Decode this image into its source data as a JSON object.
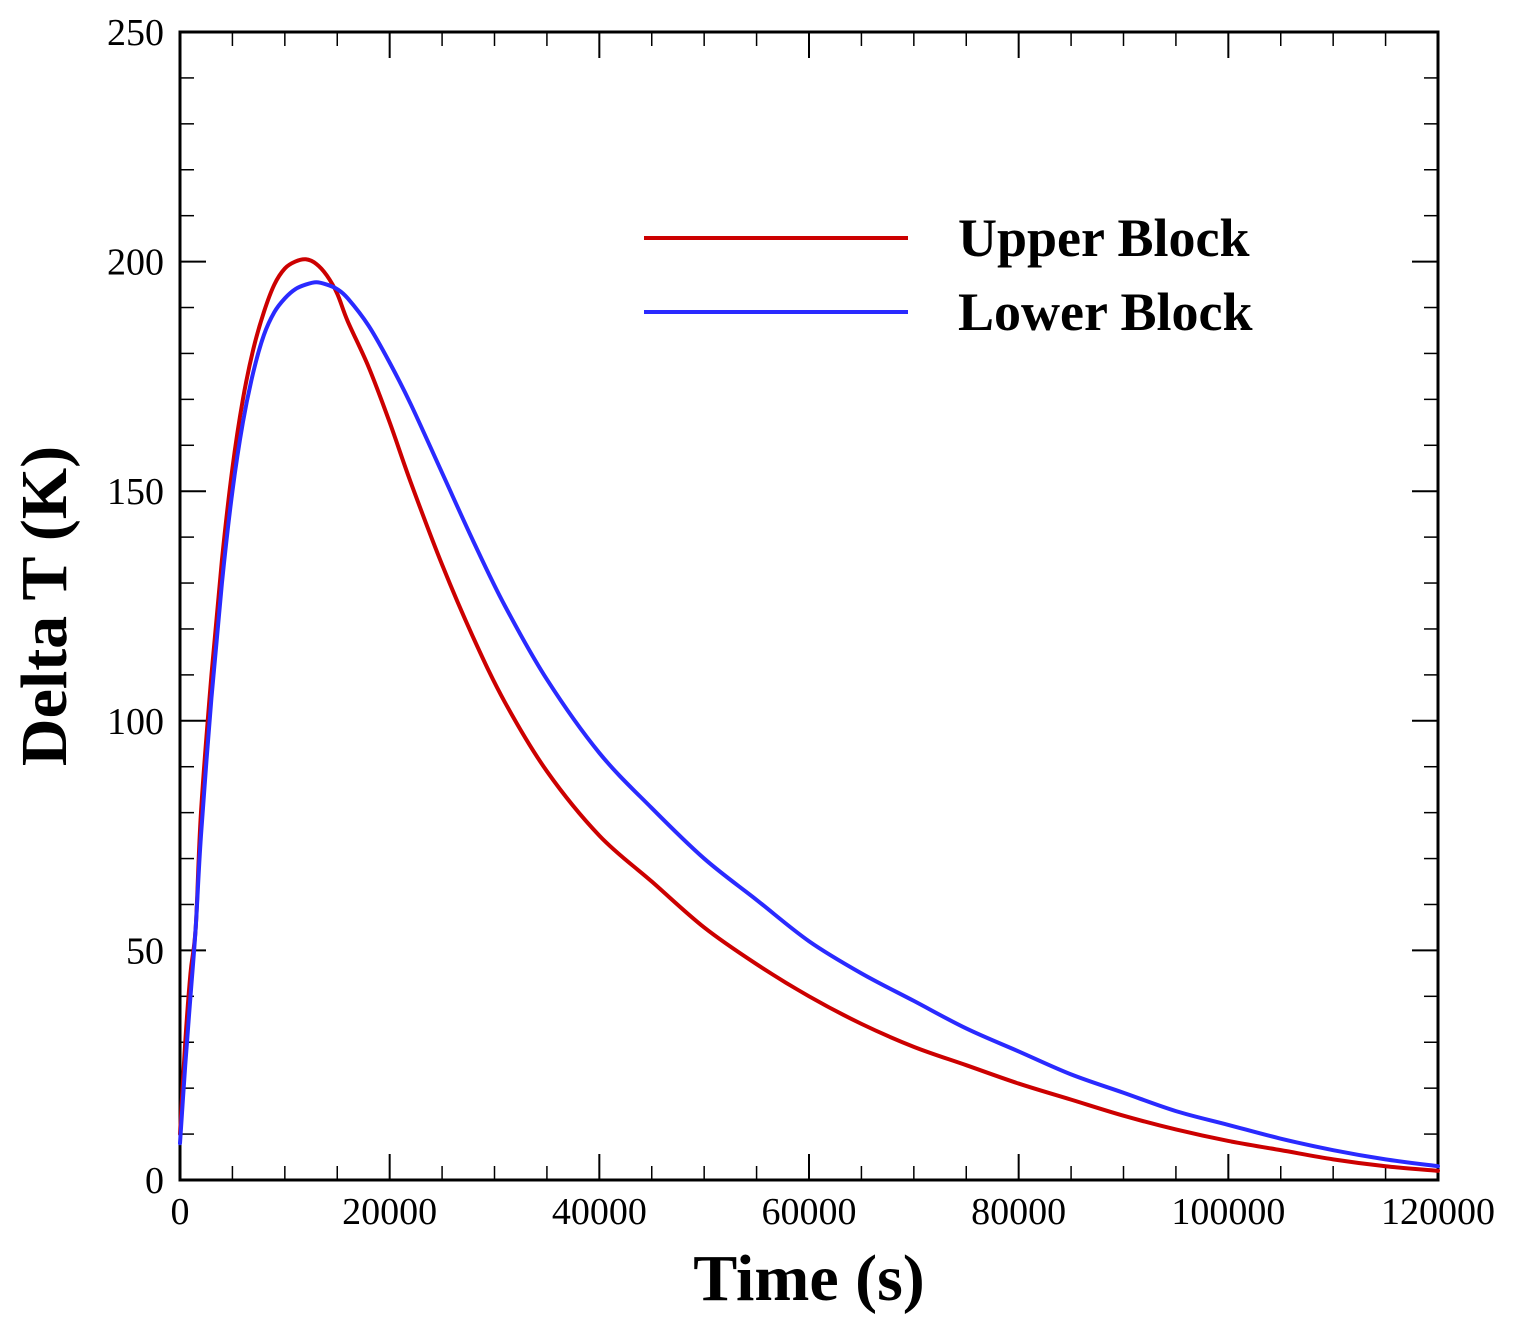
{
  "chart_data": {
    "type": "line",
    "title": "",
    "xlabel": "Time (s)",
    "ylabel": "Delta T (K)",
    "xlim": [
      0,
      120000
    ],
    "ylim": [
      0,
      250
    ],
    "xticks": [
      0,
      20000,
      40000,
      60000,
      80000,
      100000,
      120000
    ],
    "xtick_labels": [
      "0",
      "20000",
      "40000",
      "60000",
      "80000",
      "100000",
      "120000"
    ],
    "yticks": [
      0,
      50,
      100,
      150,
      200,
      250
    ],
    "ytick_labels": [
      "0",
      "50",
      "100",
      "150",
      "200",
      "250"
    ],
    "grid": false,
    "legend_position": "top-right",
    "series": [
      {
        "name": "Upper Block",
        "color": "#cc0000",
        "x": [
          0,
          500,
          1000,
          1500,
          2000,
          3000,
          4000,
          5000,
          6000,
          7000,
          8000,
          9000,
          10000,
          11000,
          12000,
          13000,
          14000,
          15000,
          16000,
          18000,
          20000,
          22000,
          25000,
          28000,
          31000,
          35000,
          40000,
          45000,
          50000,
          55000,
          60000,
          65000,
          70000,
          75000,
          80000,
          85000,
          90000,
          95000,
          100000,
          105000,
          110000,
          115000,
          120000
        ],
        "values": [
          10,
          30,
          45,
          55,
          80,
          110,
          135,
          155,
          170,
          181,
          189,
          195,
          198.5,
          200,
          200.5,
          199.5,
          197,
          193,
          187,
          177,
          165,
          152,
          134,
          118,
          104,
          89,
          75,
          65,
          55,
          47,
          40,
          34,
          29,
          25,
          21,
          17.5,
          14,
          11,
          8.5,
          6.5,
          4.5,
          3,
          2
        ]
      },
      {
        "name": "Lower Block",
        "color": "#2a2aff",
        "x": [
          0,
          500,
          1000,
          1500,
          2000,
          3000,
          4000,
          5000,
          6000,
          7000,
          8000,
          9000,
          10000,
          11000,
          12000,
          13000,
          14000,
          15000,
          16000,
          18000,
          20000,
          22000,
          25000,
          28000,
          31000,
          35000,
          40000,
          45000,
          50000,
          55000,
          60000,
          65000,
          70000,
          75000,
          80000,
          85000,
          90000,
          95000,
          100000,
          105000,
          110000,
          115000,
          120000
        ],
        "values": [
          8,
          25,
          40,
          55,
          75,
          105,
          130,
          150,
          165,
          176,
          184,
          189,
          192,
          194,
          195,
          195.5,
          195,
          194,
          192,
          186,
          178,
          169,
          154,
          139,
          125,
          109,
          93,
          81,
          70,
          61,
          52,
          45,
          39,
          33,
          28,
          23,
          19,
          15,
          12,
          9,
          6.5,
          4.5,
          3
        ]
      }
    ]
  }
}
